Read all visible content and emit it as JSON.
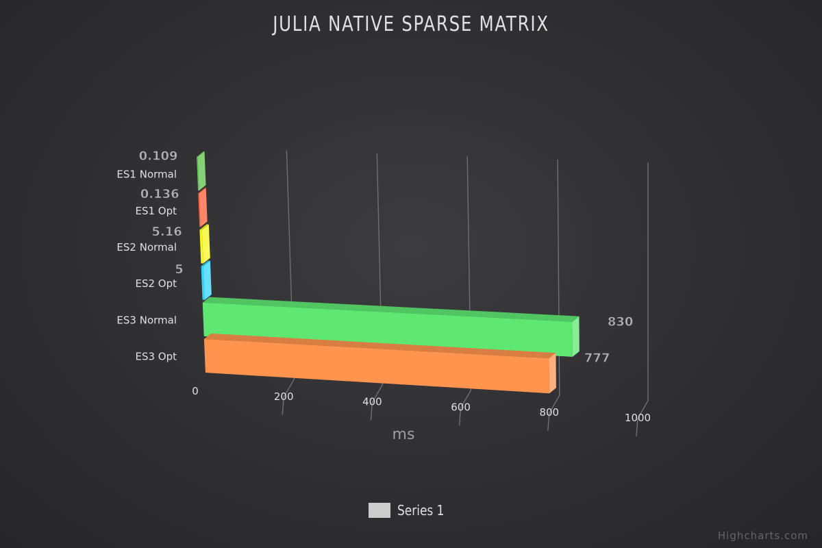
{
  "chart_data": {
    "type": "bar",
    "orientation": "horizontal",
    "three_d": true,
    "title": "JULIA NATIVE SPARSE MATRIX",
    "xlabel": "ms",
    "categories": [
      "ES1 Normal",
      "ES1 Opt",
      "ES2 Normal",
      "ES2 Opt",
      "ES3 Normal",
      "ES3 Opt"
    ],
    "series": [
      {
        "name": "Series 1",
        "values": [
          0.109,
          0.136,
          5.16,
          5,
          830,
          777
        ],
        "data_labels": [
          "0.109",
          "0.136",
          "5.16",
          "5",
          "830",
          "777"
        ]
      }
    ],
    "colors": [
      "#5ec249",
      "#ff5d35",
      "#f5f51f",
      "#33d5ff",
      "#5ee872",
      "#ff944f"
    ],
    "ticks": [
      0,
      200,
      400,
      600,
      800,
      1000
    ],
    "xlim": [
      0,
      1000
    ],
    "grid": true,
    "legend_position": "bottom-center"
  },
  "legend": {
    "label": "Series 1",
    "color": "#cccccc"
  },
  "credits": "Highcharts.com"
}
